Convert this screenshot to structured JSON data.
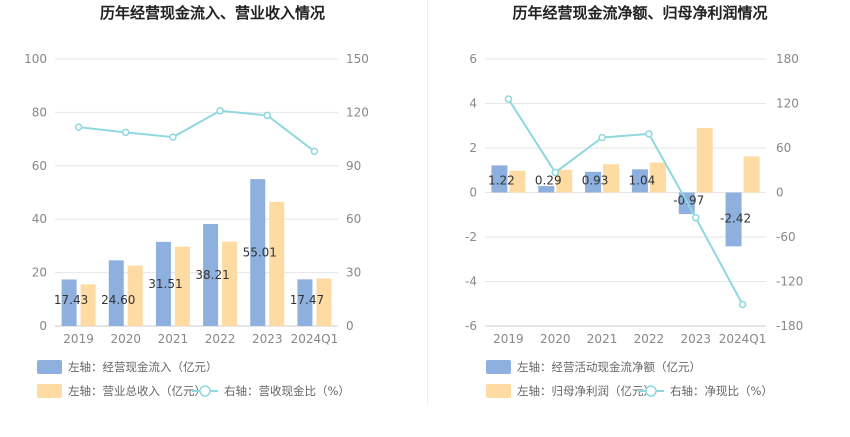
{
  "chart_data": [
    {
      "type": "bar",
      "title": "历年经营现金流入、营业收入情况",
      "categories": [
        "2019",
        "2020",
        "2021",
        "2022",
        "2023",
        "2024Q1"
      ],
      "left_axis": {
        "min": 0,
        "max": 100,
        "ticks": [
          "0",
          "20",
          "40",
          "60",
          "80",
          "100"
        ]
      },
      "right_axis": {
        "min": 0,
        "max": 150,
        "ticks": [
          "0",
          "30",
          "60",
          "90",
          "120",
          "150"
        ]
      },
      "series": [
        {
          "name": "左轴：经营现金流入（亿元）",
          "type": "bar",
          "axis": "left",
          "color": "#8eb0df",
          "values": [
            17.43,
            24.6,
            31.51,
            38.21,
            55.01,
            17.47
          ],
          "labels": [
            "17.43",
            "24.60",
            "31.51",
            "38.21",
            "55.01",
            "17.47"
          ]
        },
        {
          "name": "左轴：营业总收入（亿元）",
          "type": "bar",
          "axis": "left",
          "color": "#fddba2",
          "values": [
            15.6,
            22.6,
            29.7,
            31.6,
            46.5,
            17.8
          ]
        },
        {
          "name": "右轴：营收现金比（%）",
          "type": "line",
          "axis": "right",
          "color": "#8fd8df",
          "values": [
            111.7,
            108.8,
            106.1,
            120.9,
            118.3,
            98.1
          ]
        }
      ]
    },
    {
      "type": "bar",
      "title": "历年经营现金流净额、归母净利润情况",
      "categories": [
        "2019",
        "2020",
        "2021",
        "2022",
        "2023",
        "2024Q1"
      ],
      "left_axis": {
        "min": -6,
        "max": 6,
        "ticks": [
          "-6",
          "-4",
          "-2",
          "0",
          "2",
          "4",
          "6"
        ]
      },
      "right_axis": {
        "min": -180,
        "max": 180,
        "ticks": [
          "-180",
          "-120",
          "-60",
          "0",
          "60",
          "120",
          "180"
        ]
      },
      "series": [
        {
          "name": "左轴：经营活动现金流净额（亿元）",
          "type": "bar",
          "axis": "left",
          "color": "#8eb0df",
          "values": [
            1.22,
            0.29,
            0.93,
            1.04,
            -0.97,
            -2.42
          ],
          "labels": [
            "1.22",
            "0.29",
            "0.93",
            "1.04",
            "-0.97",
            "-2.42"
          ]
        },
        {
          "name": "左轴：归母净利润（亿元）",
          "type": "bar",
          "axis": "left",
          "color": "#fddba2",
          "values": [
            0.98,
            1.02,
            1.27,
            1.34,
            2.9,
            1.62
          ]
        },
        {
          "name": "右轴：净现比（%）",
          "type": "line",
          "axis": "right",
          "color": "#8fd8df",
          "values": [
            126,
            27,
            74,
            79,
            -34,
            -151
          ]
        }
      ]
    }
  ]
}
